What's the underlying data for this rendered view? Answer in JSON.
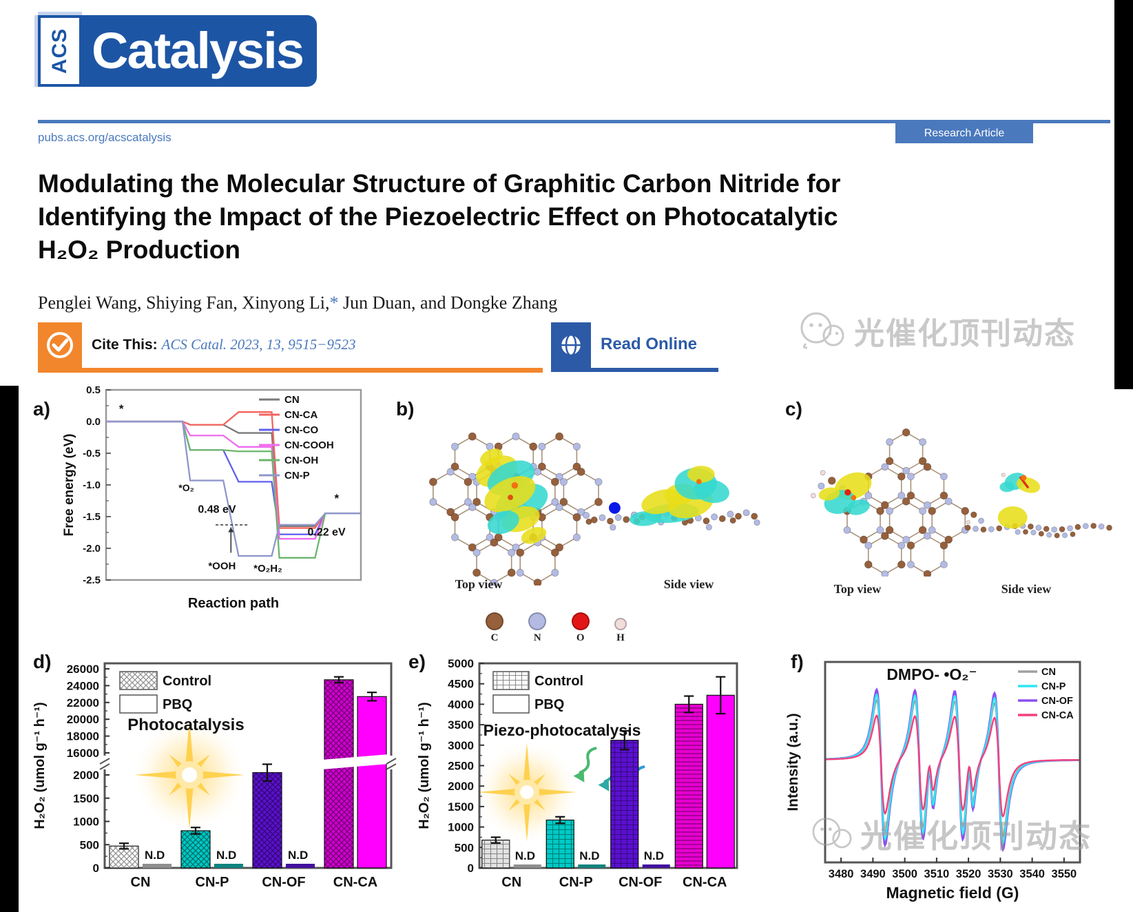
{
  "header": {
    "acs": "ACS",
    "journal": "Catalysis",
    "url": "pubs.acs.org/acscatalysis",
    "badge": "Research Article"
  },
  "article": {
    "title": [
      "Modulating the Molecular Structure of Graphitic Carbon Nitride for",
      "Identifying the Impact of the Piezoelectric Effect on Photocatalytic",
      "H₂O₂ Production"
    ],
    "authors_pre": "Penglei Wang, Shiying Fan, Xinyong Li,",
    "authors_star": "*",
    "authors_post": " Jun Duan, and Dongke Zhang",
    "cite_label": "Cite This:",
    "cite_ref": "ACS Catal. 2023, 13, 9515−9523",
    "read_online": "Read Online"
  },
  "watermark": {
    "text": "光催化顶刊动态"
  },
  "panels": {
    "a": {
      "label": "a)"
    },
    "b": {
      "label": "b)",
      "top_view": "Top view",
      "side_view": "Side view",
      "atoms": [
        {
          "symbol": "C",
          "color": "#96603c"
        },
        {
          "symbol": "N",
          "color": "#b3bbe4"
        },
        {
          "symbol": "O",
          "color": "#e21616"
        },
        {
          "symbol": "H",
          "color": "#f2dcdc"
        }
      ]
    },
    "c": {
      "label": "c)",
      "top_view": "Top view",
      "side_view": "Side view"
    },
    "d": {
      "label": "d)"
    },
    "e": {
      "label": "e)"
    },
    "f": {
      "label": "f)"
    }
  },
  "chart_data": [
    {
      "panel": "a",
      "type": "line",
      "xlabel": "Reaction path",
      "ylabel": "Free energy (eV)",
      "ylim": [
        -2.5,
        0.5
      ],
      "yticks": [
        0.5,
        0.0,
        -0.5,
        -1.0,
        -1.5,
        -2.0,
        -2.5
      ],
      "steps": [
        "*",
        "*O₂",
        "*OOH",
        "*O₂H₂",
        "*"
      ],
      "series": [
        {
          "name": "CN",
          "color": "#7a7a7a",
          "values": [
            0,
            -0.05,
            -0.18,
            -1.65,
            -1.45
          ]
        },
        {
          "name": "CN-CA",
          "color": "#f4645f",
          "values": [
            0,
            -0.05,
            0.15,
            -1.68,
            -1.45
          ]
        },
        {
          "name": "CN-CO",
          "color": "#5f5fee",
          "values": [
            0,
            -0.45,
            -0.95,
            -1.78,
            -1.45
          ]
        },
        {
          "name": "CN-COOH",
          "color": "#ee6bee",
          "values": [
            0,
            -0.22,
            -0.4,
            -1.85,
            -1.45
          ]
        },
        {
          "name": "CN-OH",
          "color": "#6cb56c",
          "values": [
            0,
            -0.45,
            -0.47,
            -2.15,
            -1.45
          ]
        },
        {
          "name": "CN-P",
          "color": "#8f97cb",
          "values": [
            0,
            -0.93,
            -2.12,
            -1.63,
            -1.45
          ]
        }
      ],
      "annotations": {
        "barrier1": "0.48 eV",
        "barrier2": "0.22 eV",
        "start_marker": "*",
        "end_marker": "*"
      },
      "legend_position": "top-right",
      "grid": false
    },
    {
      "panel": "d",
      "type": "bar",
      "broken_axis": true,
      "ylabel": "H₂O₂ (umol g⁻¹ h⁻¹)",
      "yticks_top": [
        26000,
        24000,
        22000,
        20000,
        18000,
        16000
      ],
      "yticks_bottom": [
        2000,
        1500,
        1000,
        500,
        0
      ],
      "categories": [
        "CN",
        "CN-P",
        "CN-OF",
        "CN-CA"
      ],
      "legend": [
        "Control",
        "PBQ"
      ],
      "inner_label": "Photocatalysis",
      "nd_label": "N.D",
      "control_values": [
        470,
        800,
        2050,
        24700
      ],
      "control_errors": [
        60,
        70,
        180,
        350
      ],
      "control_colors": [
        "#ffffff",
        "#00c9c4",
        "#5a10cf",
        "#cf00cf"
      ],
      "pbq_values": [
        null,
        null,
        null,
        22700
      ],
      "pbq_errors": [
        null,
        null,
        null,
        500
      ],
      "pbq_color": "#ff00ff",
      "pbq_sliver_colors": [
        "#8f8f8f",
        "#0e837e",
        "#42109e"
      ]
    },
    {
      "panel": "e",
      "type": "bar",
      "broken_axis": false,
      "ylabel": "H₂O₂ (umol g⁻¹ h⁻¹)",
      "ylim": [
        0,
        5000
      ],
      "yticks": [
        0,
        500,
        1000,
        1500,
        2000,
        2500,
        3000,
        3500,
        4000,
        4500,
        5000
      ],
      "categories": [
        "CN",
        "CN-P",
        "CN-OF",
        "CN-CA"
      ],
      "legend": [
        "Control",
        "PBQ"
      ],
      "inner_label": "Piezo-photocatalysis",
      "nd_label": "N.D",
      "control_values": [
        680,
        1170,
        3120,
        4000
      ],
      "control_errors": [
        70,
        80,
        230,
        200
      ],
      "control_colors": [
        "#e2e2e2",
        "#00c9c4",
        "#5a10cf",
        "#e500cf"
      ],
      "pbq_values": [
        null,
        null,
        null,
        4220
      ],
      "pbq_errors": [
        null,
        null,
        null,
        450
      ],
      "pbq_color": "#ff00ff",
      "pbq_sliver_colors": [
        "#8f8f8f",
        "#0e837e",
        "#42109e"
      ]
    },
    {
      "panel": "f",
      "type": "line",
      "title": "DMPO- •O₂⁻",
      "xlabel": "Magnetic field (G)",
      "ylabel": "Intensity (a.u.)",
      "xlim": [
        3475,
        3555
      ],
      "xticks": [
        3480,
        3490,
        3500,
        3510,
        3520,
        3530,
        3540,
        3550
      ],
      "epr_peaks": {
        "main_centers": [
          3492.5,
          3504.5,
          3517.0,
          3529.5
        ],
        "main_width": 2.3,
        "minor_centers": [
          3508.3,
          3520.8
        ],
        "minor_width": 1.3,
        "minor_rel_amp": 0.35
      },
      "series": [
        {
          "name": "CN",
          "color": "#a0a0a0",
          "amp": 0.85
        },
        {
          "name": "CN-P",
          "color": "#2ee6f2",
          "amp": 0.93
        },
        {
          "name": "CN-OF",
          "color": "#8a50f0",
          "amp": 1.0
        },
        {
          "name": "CN-CA",
          "color": "#f43f7f",
          "amp": 0.63
        }
      ],
      "legend_position": "top-right"
    }
  ]
}
